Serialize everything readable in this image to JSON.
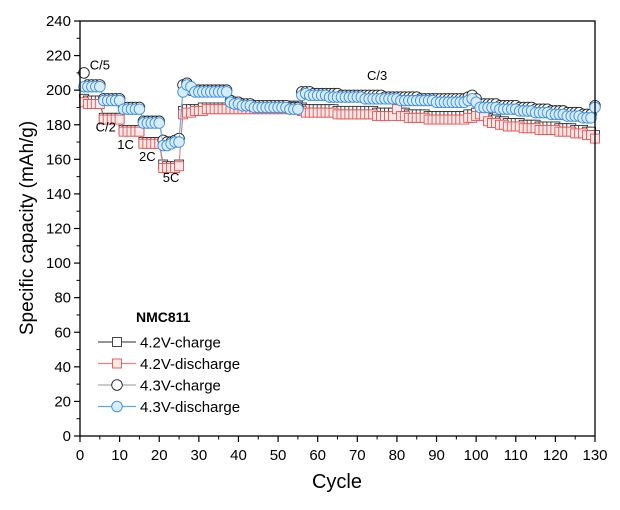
{
  "chart_data": {
    "type": "scatter",
    "title": "",
    "xlabel": "Cycle",
    "ylabel": "Specific capacity (mAh/g)",
    "xlim": [
      0,
      130
    ],
    "ylim": [
      0,
      240
    ],
    "xticks": [
      0,
      10,
      20,
      30,
      40,
      50,
      60,
      70,
      80,
      90,
      100,
      110,
      120,
      130
    ],
    "yticks": [
      0,
      20,
      40,
      60,
      80,
      100,
      120,
      140,
      160,
      180,
      200,
      220,
      240
    ],
    "grid": false,
    "legend": {
      "title": "NMC811",
      "placement": "bottom-left"
    },
    "annotations": [
      {
        "text": "C/5",
        "x": 5,
        "y": 212
      },
      {
        "text": "C/2",
        "x": 6.5,
        "y": 176
      },
      {
        "text": "1C",
        "x": 11.5,
        "y": 166
      },
      {
        "text": "2C",
        "x": 17,
        "y": 159
      },
      {
        "text": "5C",
        "x": 23,
        "y": 147
      },
      {
        "text": "C/3",
        "x": 75,
        "y": 206
      }
    ],
    "series": [
      {
        "name": "4.2V-charge",
        "marker": "square",
        "color": "#333333",
        "fill": "#ffffff",
        "line": "#555555",
        "values": [
          195,
          194,
          194,
          194,
          194,
          184,
          184,
          184,
          184,
          184,
          177,
          177,
          177,
          177,
          177,
          170,
          170,
          170,
          170,
          170,
          157,
          156,
          156,
          156,
          157,
          188,
          189,
          189,
          189,
          189,
          190,
          190,
          190,
          190,
          190,
          190,
          190,
          190,
          190,
          190,
          190,
          190,
          190,
          190,
          191,
          191,
          191,
          191,
          191,
          191,
          191,
          191,
          191,
          191,
          191,
          190,
          189,
          189,
          189,
          189,
          189,
          189,
          189,
          189,
          188,
          188,
          188,
          188,
          188,
          188,
          188,
          188,
          188,
          188,
          187,
          187,
          187,
          187,
          187,
          191,
          187,
          187,
          186,
          186,
          186,
          186,
          186,
          185,
          185,
          185,
          185,
          185,
          185,
          185,
          185,
          185,
          185,
          186,
          186,
          187,
          188,
          187,
          184,
          183,
          183,
          182,
          182,
          181,
          181,
          181,
          181,
          180,
          180,
          180,
          180,
          179,
          179,
          179,
          179,
          179,
          178,
          178,
          178,
          178,
          177,
          177,
          177,
          176,
          176,
          174
        ]
      },
      {
        "name": "4.2V-discharge",
        "marker": "square",
        "color": "#e05555",
        "fill": "#ffe8e8",
        "line": "#f08080",
        "values": [
          193,
          192,
          192,
          192,
          192,
          183,
          183,
          183,
          183,
          183,
          176,
          176,
          176,
          176,
          176,
          169,
          169,
          169,
          169,
          169,
          155,
          155,
          155,
          155,
          156,
          186,
          187,
          187,
          188,
          188,
          188,
          189,
          189,
          189,
          189,
          189,
          189,
          189,
          189,
          189,
          189,
          189,
          189,
          189,
          189,
          189,
          189,
          189,
          189,
          189,
          189,
          189,
          189,
          189,
          189,
          188,
          187,
          187,
          187,
          187,
          187,
          187,
          187,
          187,
          186,
          186,
          186,
          186,
          186,
          186,
          186,
          186,
          186,
          186,
          185,
          185,
          185,
          185,
          185,
          189,
          185,
          185,
          184,
          184,
          184,
          184,
          184,
          183,
          183,
          183,
          183,
          183,
          183,
          183,
          183,
          183,
          183,
          184,
          184,
          185,
          186,
          185,
          182,
          181,
          181,
          180,
          180,
          179,
          179,
          179,
          179,
          178,
          178,
          178,
          178,
          177,
          177,
          177,
          177,
          177,
          176,
          176,
          176,
          176,
          175,
          175,
          175,
          174,
          174,
          172
        ]
      },
      {
        "name": "4.3V-charge",
        "marker": "circle",
        "color": "#222222",
        "fill": "#ffffff",
        "line": "#aaaaaa",
        "values": [
          210,
          203,
          203,
          203,
          203,
          195,
          195,
          195,
          195,
          195,
          190,
          190,
          190,
          190,
          190,
          182,
          182,
          182,
          182,
          182,
          171,
          170,
          170,
          171,
          172,
          203,
          204,
          200,
          200,
          200,
          200,
          200,
          200,
          200,
          200,
          200,
          200,
          194,
          193,
          193,
          192,
          192,
          192,
          191,
          191,
          191,
          191,
          191,
          191,
          191,
          191,
          191,
          190,
          190,
          190,
          199,
          199,
          199,
          198,
          198,
          198,
          198,
          198,
          198,
          198,
          197,
          197,
          197,
          197,
          197,
          197,
          197,
          197,
          197,
          197,
          197,
          196,
          196,
          196,
          196,
          196,
          196,
          196,
          196,
          196,
          195,
          195,
          195,
          195,
          195,
          195,
          195,
          195,
          195,
          195,
          195,
          195,
          196,
          197,
          195,
          192,
          192,
          192,
          192,
          192,
          191,
          191,
          191,
          191,
          191,
          190,
          190,
          190,
          190,
          189,
          189,
          189,
          189,
          188,
          188,
          188,
          188,
          187,
          187,
          187,
          187,
          186,
          186,
          186,
          191
        ]
      },
      {
        "name": "4.3V-discharge",
        "marker": "circle",
        "color": "#3d8fd9",
        "fill": "#d6ecff",
        "line": "#5fa8e8",
        "values": [
          202,
          202,
          202,
          202,
          202,
          194,
          194,
          194,
          194,
          194,
          189,
          189,
          189,
          189,
          189,
          181,
          181,
          181,
          181,
          181,
          168,
          168,
          169,
          170,
          170,
          199,
          203,
          202,
          199,
          199,
          199,
          199,
          199,
          199,
          199,
          199,
          199,
          193,
          192,
          192,
          191,
          191,
          191,
          190,
          190,
          190,
          190,
          190,
          190,
          190,
          190,
          190,
          189,
          189,
          189,
          197,
          198,
          197,
          197,
          197,
          197,
          197,
          196,
          196,
          196,
          196,
          196,
          196,
          196,
          196,
          196,
          195,
          195,
          195,
          195,
          195,
          195,
          195,
          195,
          195,
          194,
          194,
          194,
          194,
          194,
          194,
          194,
          194,
          194,
          193,
          193,
          193,
          193,
          193,
          193,
          193,
          193,
          194,
          195,
          193,
          190,
          190,
          190,
          190,
          190,
          189,
          189,
          189,
          189,
          189,
          188,
          188,
          188,
          188,
          187,
          187,
          187,
          187,
          186,
          186,
          186,
          186,
          185,
          185,
          185,
          185,
          184,
          184,
          184,
          190
        ]
      }
    ]
  }
}
